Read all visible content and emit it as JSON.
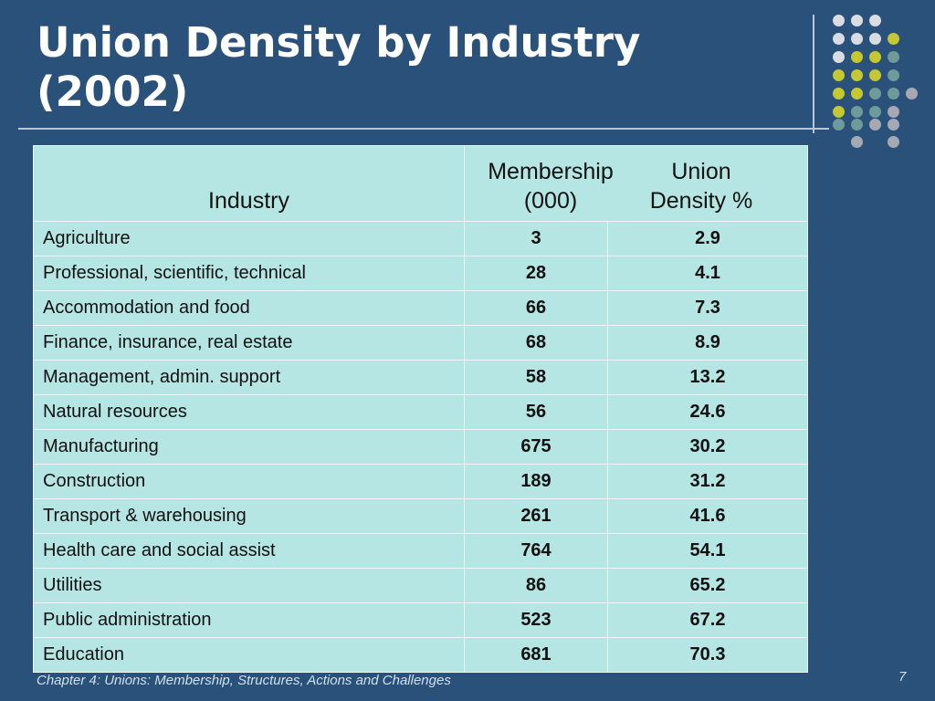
{
  "slide": {
    "title_line1": "Union Density by Industry",
    "title_line2": "(2002)",
    "footer": "Chapter 4: Unions: Membership, Structures, Actions and Challenges",
    "page_number": "7"
  },
  "table": {
    "headers": {
      "industry": "Industry",
      "membership_line1": "Membership",
      "membership_line2": "(000)",
      "density_line1": "Union",
      "density_line2": "Density %"
    },
    "rows": [
      {
        "industry": "Agriculture",
        "membership": "3",
        "density": "2.9"
      },
      {
        "industry": "Professional, scientific, technical",
        "membership": "28",
        "density": "4.1"
      },
      {
        "industry": "Accommodation and food",
        "membership": "66",
        "density": "7.3"
      },
      {
        "industry": "Finance, insurance, real estate",
        "membership": "68",
        "density": "8.9"
      },
      {
        "industry": "Management, admin. support",
        "membership": "58",
        "density": "13.2"
      },
      {
        "industry": "Natural resources",
        "membership": "56",
        "density": "24.6"
      },
      {
        "industry": "Manufacturing",
        "membership": "675",
        "density": "30.2"
      },
      {
        "industry": "Construction",
        "membership": "189",
        "density": "31.2"
      },
      {
        "industry": "Transport & warehousing",
        "membership": "261",
        "density": "41.6"
      },
      {
        "industry": "Health care and social assist",
        "membership": "764",
        "density": "54.1"
      },
      {
        "industry": "Utilities",
        "membership": "86",
        "density": "65.2"
      },
      {
        "industry": "Public administration",
        "membership": "523",
        "density": "67.2"
      },
      {
        "industry": "Education",
        "membership": "681",
        "density": "70.3"
      }
    ]
  },
  "colors": {
    "background": "#2a5179",
    "table_fill": "#b5e6e3",
    "dot_light": "#d9dce3",
    "dot_yellow": "#c5c832",
    "dot_teal": "#6e9a9a",
    "dot_gray": "#a6a9b3"
  }
}
